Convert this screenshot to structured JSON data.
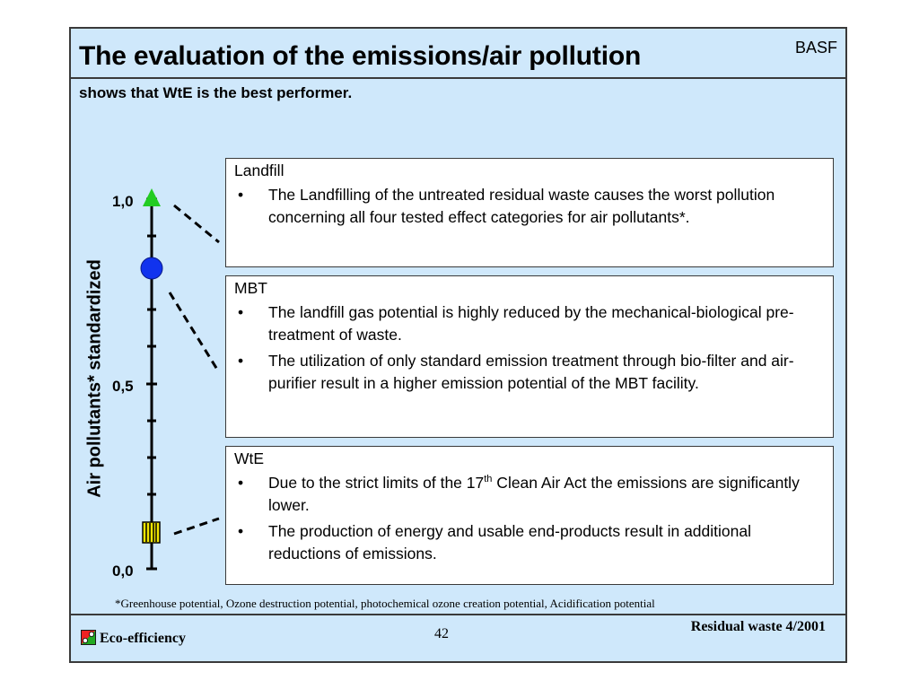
{
  "header": {
    "title": "The evaluation of the emissions/air pollution",
    "brand": "BASF"
  },
  "subtitle": "shows that WtE is the best performer.",
  "axis": {
    "label": "Air pollutants* standardized",
    "ticks": [
      "1,0",
      "0,5",
      "0,0"
    ]
  },
  "markers": [
    {
      "name": "Landfill",
      "shape": "triangle",
      "color": "#22cc22",
      "value": 1.0
    },
    {
      "name": "MBT",
      "shape": "circle",
      "color": "#1133ee",
      "value": 0.86
    },
    {
      "name": "WtE",
      "shape": "striped-square",
      "color": "#f2e600",
      "value": 0.03
    }
  ],
  "boxes": {
    "landfill": {
      "heading": "Landfill",
      "bullets": [
        "The Landfilling of the untreated residual waste causes the worst pollution concerning all four tested effect categories for air pollutants*."
      ]
    },
    "mbt": {
      "heading": "MBT",
      "bullets": [
        "The landfill gas potential is highly reduced by the mechanical-biological pre-treatment of waste.",
        "The utilization of only standard emission treatment through bio-filter and air-purifier result in a higher emission potential of the MBT facility."
      ]
    },
    "wte": {
      "heading": "WtE",
      "b1_pre": "Due to the strict limits of the 17",
      "b1_sup": "th",
      "b1_post": " Clean Air Act the emissions are significantly lower.",
      "b2": "The production of energy and usable end-products result in additional reductions of emissions."
    }
  },
  "bullet_char": "•",
  "footnote": "*Greenhouse potential, Ozone destruction potential, photochemical ozone creation potential, Acidification potential",
  "footer": {
    "left": "Eco-efficiency",
    "page": "42",
    "right": "Residual waste 4/2001"
  }
}
